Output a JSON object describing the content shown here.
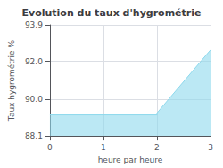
{
  "chart_data": {
    "type": "area",
    "title": "Evolution du taux d'hygrométrie",
    "xlabel": "heure par heure",
    "ylabel": "Taux hygrométrie %",
    "x": [
      0,
      2,
      2,
      3
    ],
    "values": [
      89.2,
      89.2,
      89.3,
      92.6
    ],
    "color": "#8dd8ec",
    "xlim": [
      0,
      3
    ],
    "xticks": [
      0,
      1,
      2,
      3
    ],
    "ylim": [
      88.1,
      93.9
    ],
    "yticks": [
      88.1,
      {
        "value": 90.0,
        "label": "90.0"
      },
      {
        "value": 92.0,
        "label": "92.0"
      },
      93.9
    ],
    "grid": true
  }
}
